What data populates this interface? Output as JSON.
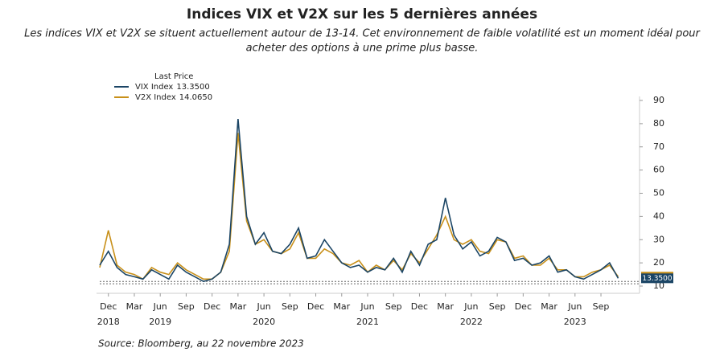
{
  "chart_data": {
    "type": "line",
    "title": "Indices VIX et V2X sur les 5 dernières années",
    "subtitle": [
      "Les indices VIX et V2X se situent actuellement autour de 13-14. Cet environnement de faible volatilité est un moment idéal pour",
      "acheter des options à une prime plus basse."
    ],
    "legend_title": "Last Price",
    "source": "Source: Bloomberg, au 22 novembre 2023",
    "x": [
      "2018-11",
      "2018-12",
      "2019-01",
      "2019-02",
      "2019-03",
      "2019-04",
      "2019-05",
      "2019-06",
      "2019-07",
      "2019-08",
      "2019-09",
      "2019-10",
      "2019-11",
      "2019-12",
      "2020-01",
      "2020-02",
      "2020-03",
      "2020-04",
      "2020-05",
      "2020-06",
      "2020-07",
      "2020-08",
      "2020-09",
      "2020-10",
      "2020-11",
      "2020-12",
      "2021-01",
      "2021-02",
      "2021-03",
      "2021-04",
      "2021-05",
      "2021-06",
      "2021-07",
      "2021-08",
      "2021-09",
      "2021-10",
      "2021-11",
      "2021-12",
      "2022-01",
      "2022-02",
      "2022-03",
      "2022-04",
      "2022-05",
      "2022-06",
      "2022-07",
      "2022-08",
      "2022-09",
      "2022-10",
      "2022-11",
      "2022-12",
      "2023-01",
      "2023-02",
      "2023-03",
      "2023-04",
      "2023-05",
      "2023-06",
      "2023-07",
      "2023-08",
      "2023-09",
      "2023-10",
      "2023-11"
    ],
    "series": [
      {
        "name": "VIX  Index",
        "color": "#1b4565",
        "last": {
          "value": 13.35,
          "label": "13.3500"
        },
        "values": [
          19,
          25,
          18,
          15,
          14,
          13,
          17,
          15,
          13,
          19,
          16,
          14,
          12,
          13,
          16,
          28,
          82,
          40,
          28,
          33,
          25,
          24,
          28,
          35,
          22,
          23,
          30,
          25,
          20,
          18,
          19,
          16,
          18,
          17,
          22,
          16,
          25,
          19,
          28,
          30,
          48,
          32,
          26,
          29,
          23,
          25,
          31,
          29,
          21,
          22,
          19,
          20,
          23,
          16,
          17,
          14,
          13,
          15,
          17,
          20,
          13.35
        ]
      },
      {
        "name": "V2X Index",
        "color": "#c8901a",
        "last": {
          "value": 14.065,
          "label": "14.0650"
        },
        "values": [
          18,
          34,
          19,
          16,
          15,
          13,
          18,
          16,
          15,
          20,
          17,
          15,
          13,
          13,
          16,
          25,
          76,
          38,
          28,
          30,
          25,
          24,
          26,
          33,
          22,
          22,
          26,
          24,
          20,
          19,
          21,
          16,
          19,
          17,
          21,
          17,
          24,
          20,
          26,
          32,
          40,
          30,
          28,
          30,
          25,
          24,
          30,
          29,
          22,
          23,
          19,
          19,
          22,
          17,
          17,
          14,
          14,
          16,
          17,
          19,
          14.065
        ]
      }
    ],
    "xlim": [
      "2018-11",
      "2024-01"
    ],
    "xticks": [
      {
        "value": "2018-12",
        "label": "Dec"
      },
      {
        "value": "2019-03",
        "label": "Mar"
      },
      {
        "value": "2019-06",
        "label": "Jun"
      },
      {
        "value": "2019-09",
        "label": "Sep"
      },
      {
        "value": "2019-12",
        "label": "Dec"
      },
      {
        "value": "2020-03",
        "label": "Mar"
      },
      {
        "value": "2020-06",
        "label": "Jun"
      },
      {
        "value": "2020-09",
        "label": "Sep"
      },
      {
        "value": "2020-12",
        "label": "Dec"
      },
      {
        "value": "2021-03",
        "label": "Mar"
      },
      {
        "value": "2021-06",
        "label": "Jun"
      },
      {
        "value": "2021-09",
        "label": "Sep"
      },
      {
        "value": "2021-12",
        "label": "Dec"
      },
      {
        "value": "2022-03",
        "label": "Mar"
      },
      {
        "value": "2022-06",
        "label": "Jun"
      },
      {
        "value": "2022-09",
        "label": "Sep"
      },
      {
        "value": "2022-12",
        "label": "Dec"
      },
      {
        "value": "2023-03",
        "label": "Mar"
      },
      {
        "value": "2023-06",
        "label": "Jun"
      },
      {
        "value": "2023-09",
        "label": "Sep"
      }
    ],
    "year_labels": [
      {
        "value": "2018-12",
        "label": "2018"
      },
      {
        "value": "2019-06",
        "label": "2019"
      },
      {
        "value": "2020-06",
        "label": "2020"
      },
      {
        "value": "2021-06",
        "label": "2021"
      },
      {
        "value": "2022-06",
        "label": "2022"
      },
      {
        "value": "2023-06",
        "label": "2023"
      }
    ],
    "ylim": [
      10,
      90
    ],
    "yticks": [
      10,
      20,
      30,
      40,
      50,
      60,
      70,
      80,
      90
    ],
    "reference_lines": [
      11,
      12
    ]
  }
}
